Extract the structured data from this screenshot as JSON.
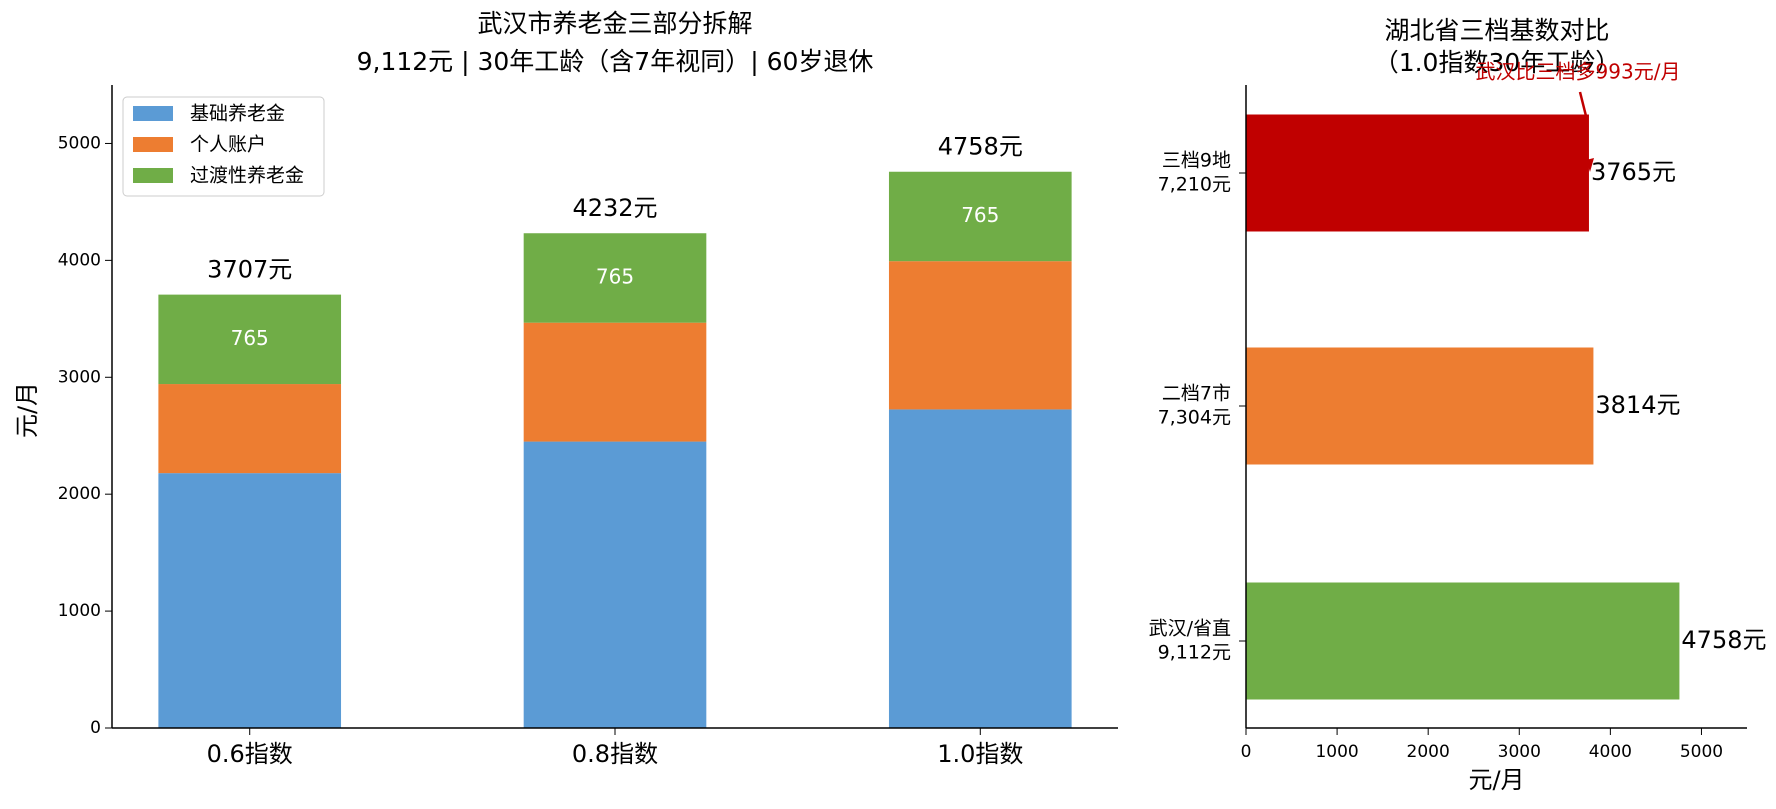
{
  "chart_data": [
    {
      "type": "stacked_bar",
      "title": [
        "武汉市养老金三部分拆解",
        "9,112元 | 30年工龄（含7年视同）| 60岁退休"
      ],
      "ylabel": "元/月",
      "categories": [
        "0.6指数",
        "0.8指数",
        "1.0指数"
      ],
      "series": [
        {
          "name": "基础养老金",
          "color": "#5b9bd5",
          "values": [
            2180,
            2450,
            2725
          ]
        },
        {
          "name": "个人账户",
          "color": "#ed7d31",
          "values": [
            762,
            1017,
            1268
          ]
        },
        {
          "name": "过渡性养老金",
          "color": "#70ad47",
          "values": [
            765,
            765,
            765
          ]
        }
      ],
      "totals": [
        3707,
        4232,
        4758
      ],
      "total_labels": [
        "3707元",
        "4232元",
        "4758元"
      ],
      "ylim": [
        0,
        5500
      ],
      "yticks": [
        0,
        1000,
        2000,
        3000,
        4000,
        5000
      ],
      "legend": "upper left"
    },
    {
      "type": "hbar",
      "title": [
        "湖北省三档基数对比",
        "（1.0指数30年工龄）"
      ],
      "xlabel": "元/月",
      "categories": [
        [
          "武汉/省直",
          "9,112元"
        ],
        [
          "二档7市",
          "7,304元"
        ],
        [
          "三档9地",
          "7,210元"
        ]
      ],
      "values": [
        4758,
        3814,
        3765
      ],
      "value_labels": [
        "4758元",
        "3814元",
        "3765元"
      ],
      "colors": [
        "#70ad47",
        "#ed7d31",
        "#c00000"
      ],
      "annotation": "武汉比三档多993元/月",
      "annotation_color": "#c00000",
      "xlim": [
        0,
        5500
      ],
      "xticks": [
        0,
        1000,
        2000,
        3000,
        4000,
        5000
      ]
    }
  ]
}
